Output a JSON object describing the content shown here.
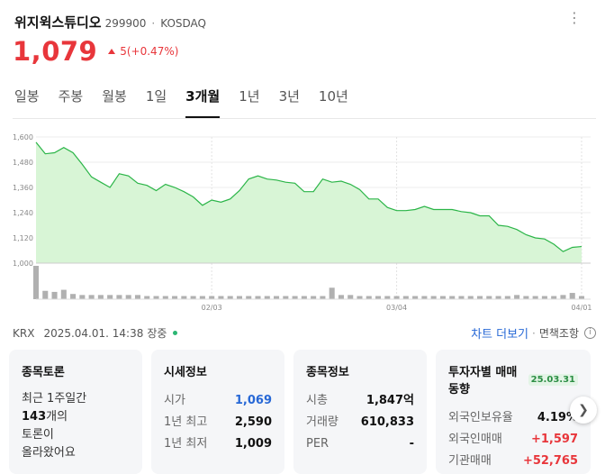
{
  "header": {
    "name": "위지윅스튜디오",
    "code": "299900",
    "separator": "·",
    "market": "KOSDAQ",
    "more_icon": "more-dots-icon"
  },
  "price": {
    "current": "1,079",
    "change": "5(+0.47%)",
    "direction": "up",
    "color": "#e8363b"
  },
  "tabs": [
    "일봉",
    "주봉",
    "월봉",
    "1일",
    "3개월",
    "1년",
    "3년",
    "10년"
  ],
  "active_tab": "3개월",
  "chart_data": {
    "type": "area",
    "y_ticks": [
      "1,600",
      "1,480",
      "1,360",
      "1,240",
      "1,120",
      "1,000"
    ],
    "ylim": [
      1000,
      1600
    ],
    "x_labels": [
      "02/03",
      "03/04",
      "04/01"
    ],
    "line_color": "#2bb548",
    "fill_color": "#d8f5d6",
    "prices": [
      1575,
      1520,
      1525,
      1550,
      1525,
      1470,
      1410,
      1385,
      1360,
      1425,
      1415,
      1380,
      1370,
      1345,
      1375,
      1360,
      1340,
      1315,
      1275,
      1300,
      1290,
      1305,
      1345,
      1400,
      1415,
      1400,
      1395,
      1385,
      1380,
      1340,
      1340,
      1400,
      1385,
      1390,
      1375,
      1350,
      1305,
      1305,
      1265,
      1250,
      1250,
      1255,
      1270,
      1255,
      1255,
      1255,
      1245,
      1240,
      1225,
      1225,
      1180,
      1175,
      1160,
      1135,
      1120,
      1115,
      1090,
      1055,
      1075,
      1079
    ],
    "volumes": [
      32,
      8,
      7,
      9,
      5,
      4,
      4,
      4,
      4,
      4,
      4,
      4,
      3,
      3,
      3,
      3,
      3,
      3,
      3,
      3,
      3,
      3,
      3,
      3,
      3,
      3,
      3,
      3,
      3,
      3,
      3,
      3,
      11,
      4,
      4,
      3,
      3,
      3,
      3,
      3,
      3,
      3,
      3,
      3,
      3,
      3,
      3,
      3,
      3,
      3,
      3,
      3,
      4,
      3,
      3,
      3,
      3,
      4,
      6,
      3
    ]
  },
  "info": {
    "exchange": "KRX",
    "datetime": "2025.04.01. 14:38",
    "status": "장중",
    "more_chart": "차트 더보기",
    "separator": "·",
    "disclaimer": "면책조항",
    "info_icon": "i"
  },
  "cards": {
    "forum": {
      "title": "종목토론",
      "line1": "최근 1주일간",
      "count": "143",
      "line2": "개의",
      "line3": "토론이",
      "line4": "올라왔어요"
    },
    "quote": {
      "title": "시세정보",
      "rows": [
        {
          "k": "시가",
          "v": "1,069"
        },
        {
          "k": "1년 최고",
          "v": "2,590"
        },
        {
          "k": "1년 최저",
          "v": "1,009"
        }
      ]
    },
    "stock": {
      "title": "종목정보",
      "rows": [
        {
          "k": "시총",
          "v": "1,847억"
        },
        {
          "k": "거래량",
          "v": "610,833"
        },
        {
          "k": "PER",
          "v": "-"
        }
      ]
    },
    "investor": {
      "title": "투자자별 매매동향",
      "date": "25.03.31",
      "rows": [
        {
          "k": "외국인보유율",
          "v": "4.19%"
        },
        {
          "k": "외국인매매",
          "v": "+1,597"
        },
        {
          "k": "기관매매",
          "v": "+52,765"
        }
      ]
    }
  }
}
